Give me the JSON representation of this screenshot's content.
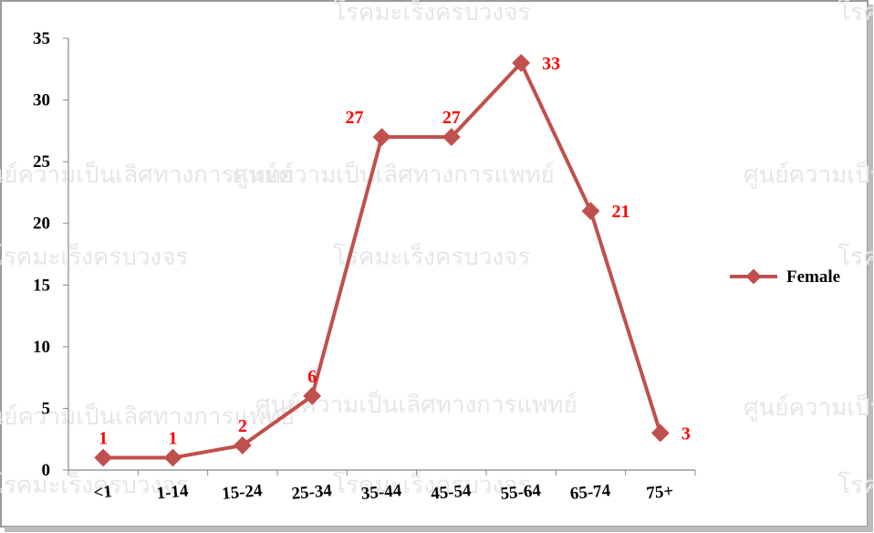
{
  "chart_data": {
    "type": "line",
    "categories": [
      "<1",
      "1-14",
      "15-24",
      "25-34",
      "35-44",
      "45-54",
      "55-64",
      "65-74",
      "75+"
    ],
    "series": [
      {
        "name": "Female",
        "color": "#c0504d",
        "values": [
          1,
          1,
          2,
          6,
          27,
          27,
          33,
          21,
          3
        ]
      }
    ],
    "ylim": [
      0,
      35
    ],
    "yticks": [
      0,
      5,
      10,
      15,
      20,
      25,
      30,
      35
    ],
    "legend": "right",
    "data_label_color": "#ff0000"
  },
  "watermarks": [
    "โรคมะเร็งครบวงจร",
    "ศูนย์ความเป็นเลิศทางการแพทย์"
  ]
}
